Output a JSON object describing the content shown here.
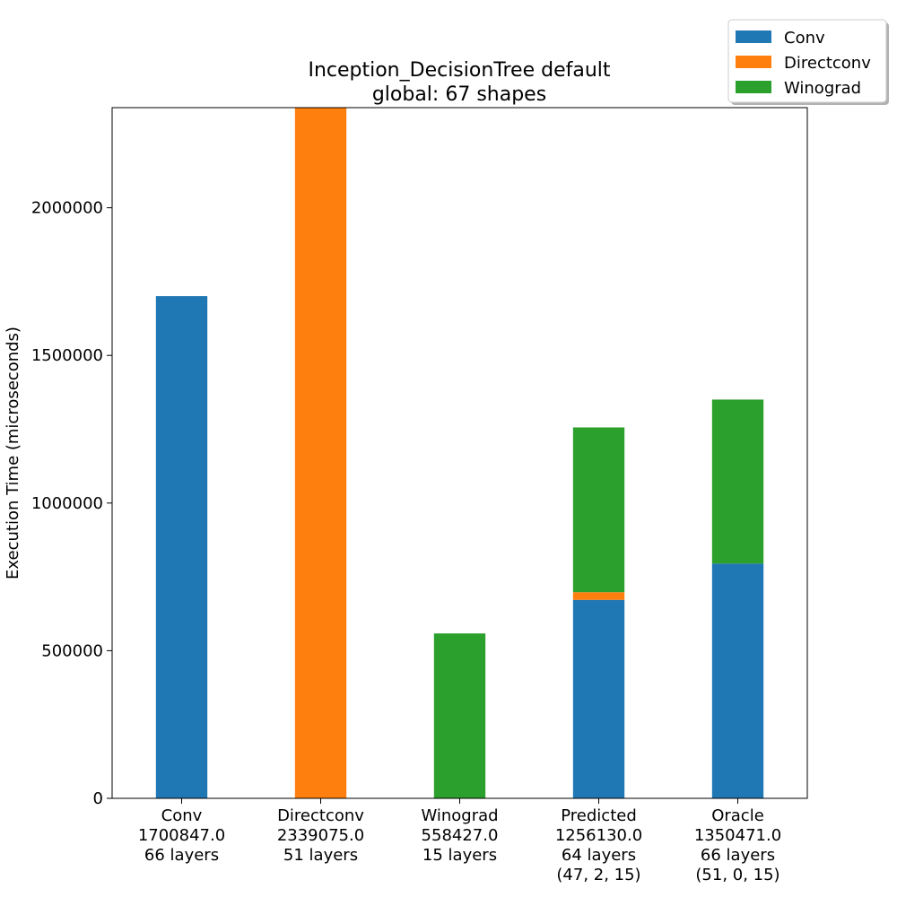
{
  "chart_data": {
    "type": "bar",
    "stacked": true,
    "title": [
      "Inception_DecisionTree default",
      "global: 67 shapes"
    ],
    "xlabel": "",
    "ylabel": "Execution Time (microseconds)",
    "ylim": [
      0,
      2339075
    ],
    "yticks": [
      0,
      500000,
      1000000,
      1500000,
      2000000
    ],
    "ytick_labels": [
      "0",
      "500000",
      "1000000",
      "1500000",
      "2000000"
    ],
    "grid": false,
    "legend_position": "top-right",
    "categories": [
      [
        "Conv",
        "1700847.0",
        "66 layers"
      ],
      [
        "Directconv",
        "2339075.0",
        "51 layers"
      ],
      [
        "Winograd",
        "558427.0",
        "15 layers"
      ],
      [
        "Predicted",
        "1256130.0",
        "64 layers",
        "(47, 2, 15)"
      ],
      [
        "Oracle",
        "1350471.0",
        "66 layers",
        "(51, 0, 15)"
      ]
    ],
    "series": [
      {
        "name": "Conv",
        "color": "#1f77b4",
        "values": [
          1700847,
          0,
          0,
          672000,
          795000
        ]
      },
      {
        "name": "Directconv",
        "color": "#ff7f0e",
        "values": [
          0,
          2339075,
          0,
          26000,
          0
        ]
      },
      {
        "name": "Winograd",
        "color": "#2ca02c",
        "values": [
          0,
          0,
          558427,
          558130,
          555471
        ]
      }
    ]
  }
}
